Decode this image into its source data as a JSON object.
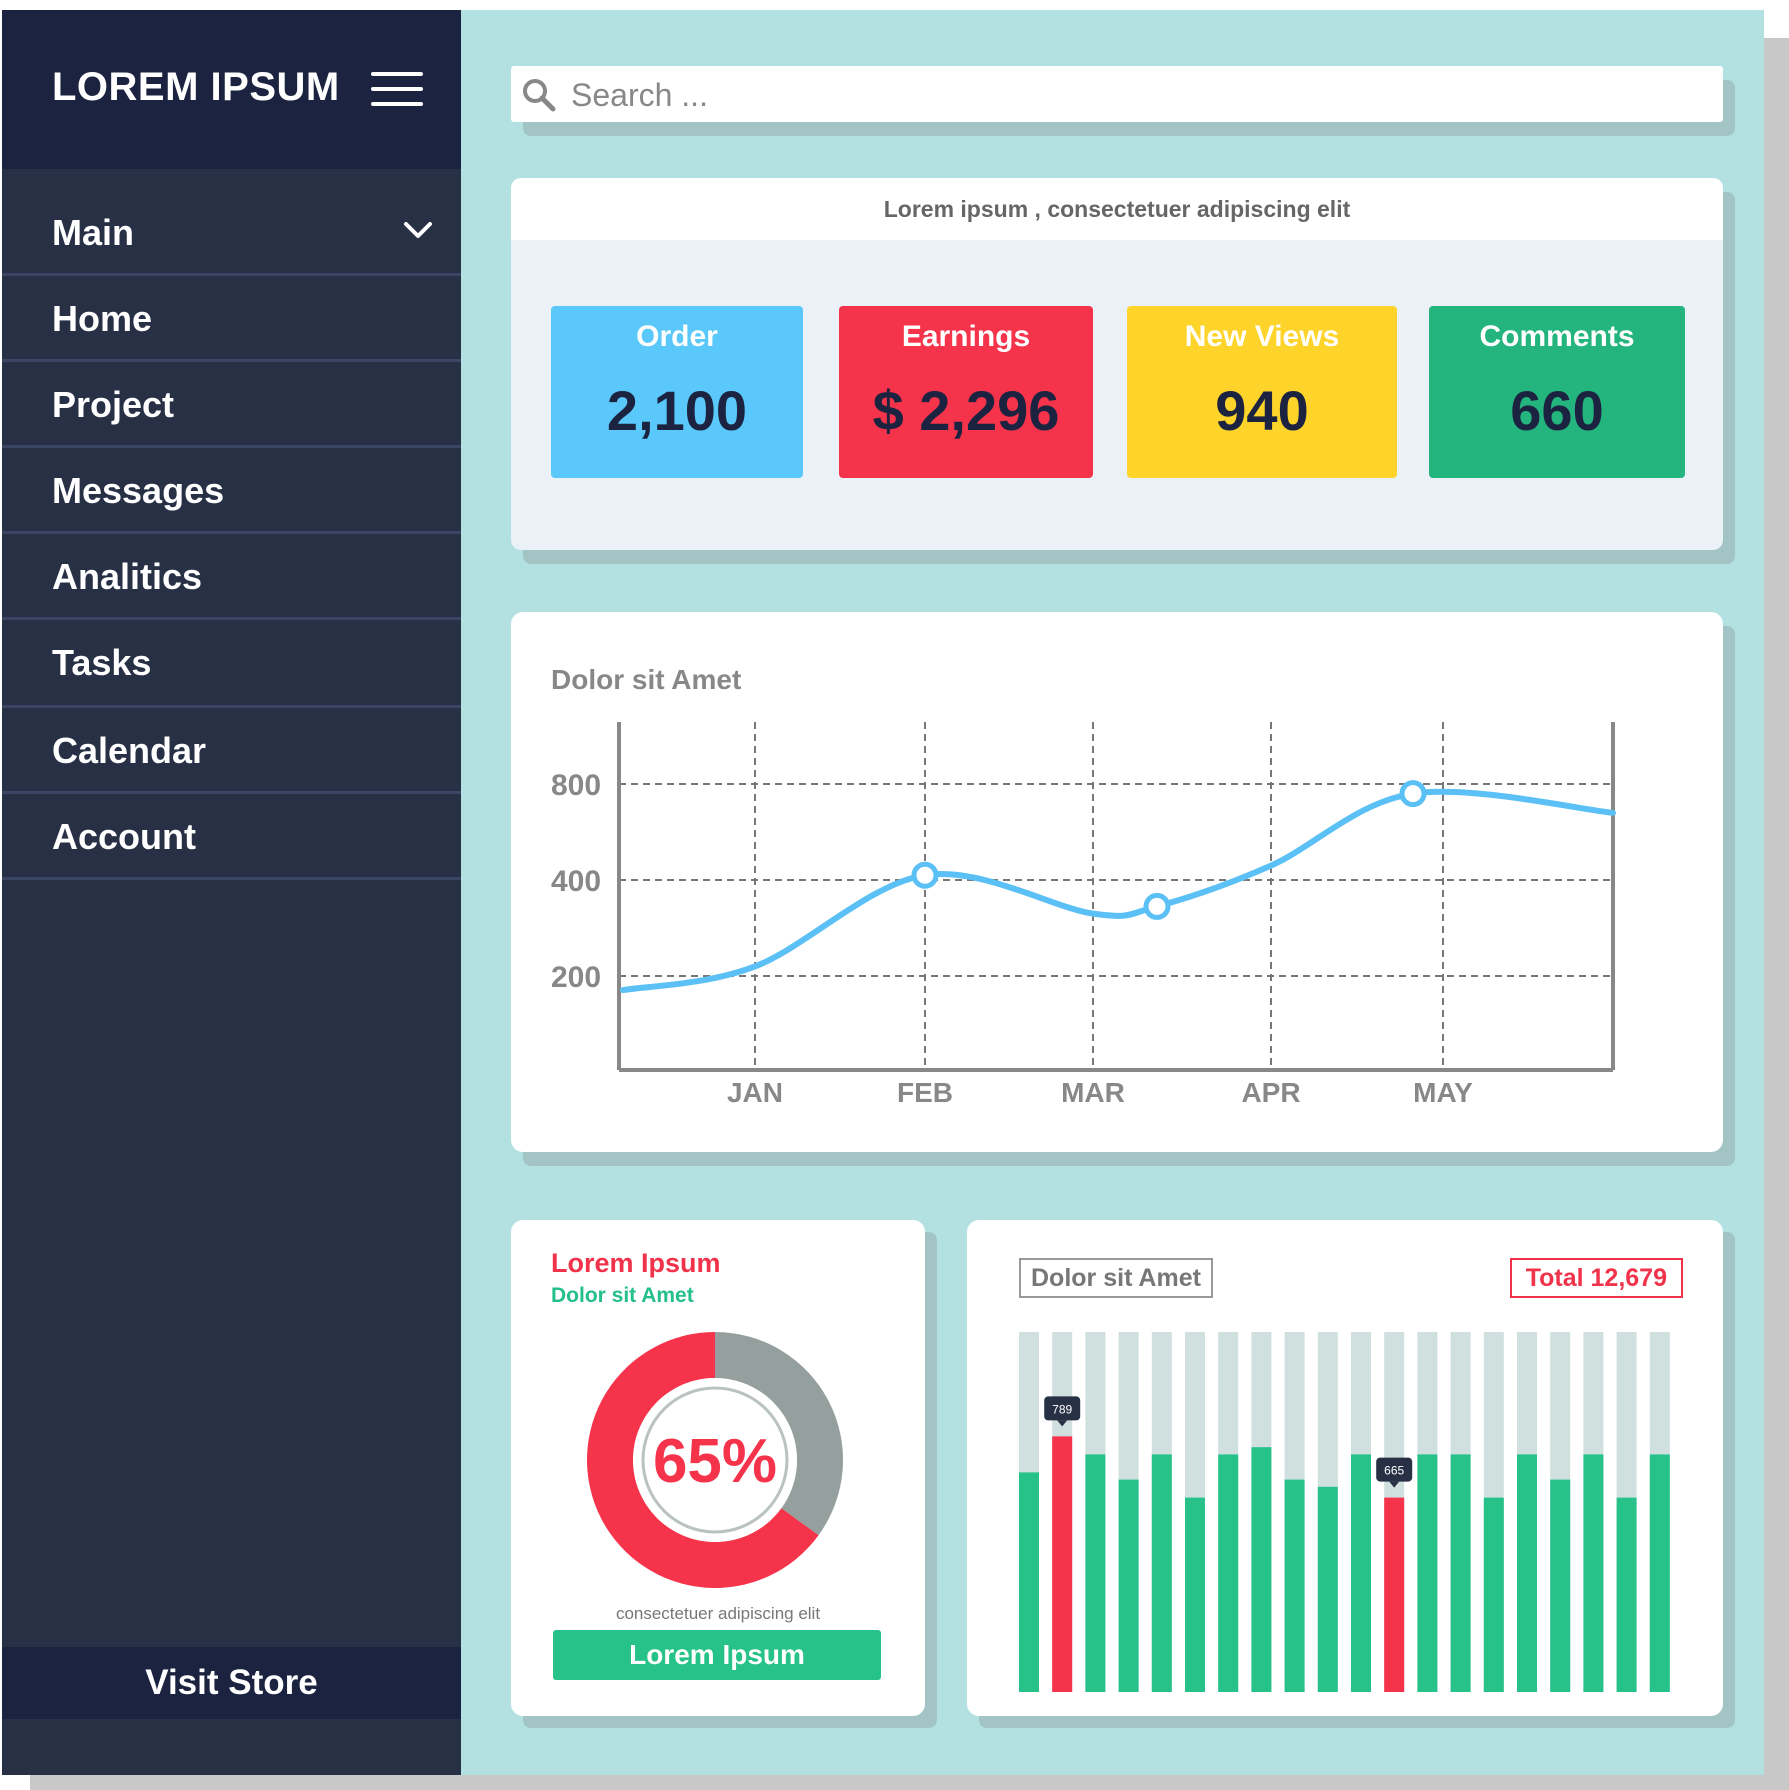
{
  "sidebar": {
    "brand": "LOREM IPSUM",
    "items": [
      {
        "label": "Main"
      },
      {
        "label": "Home"
      },
      {
        "label": "Project"
      },
      {
        "label": "Messages"
      },
      {
        "label": "Analitics"
      },
      {
        "label": "Tasks"
      },
      {
        "label": "Calendar"
      },
      {
        "label": "Account"
      }
    ],
    "footer_button": "Visit Store"
  },
  "search": {
    "placeholder": "Search ..."
  },
  "stats": {
    "heading": "Lorem ipsum , consectetuer adipiscing elit",
    "tiles": [
      {
        "label": "Order",
        "value": "2,100",
        "color": "#5ac8fa"
      },
      {
        "label": "Earnings",
        "value": "$ 2,296",
        "color": "#f5334b"
      },
      {
        "label": "New Views",
        "value": "940",
        "color": "#fed42a"
      },
      {
        "label": "Comments",
        "value": "660",
        "color": "#24b47e"
      }
    ]
  },
  "line_chart": {
    "title": "Dolor sit Amet"
  },
  "donut": {
    "title": "Lorem Ipsum",
    "subtitle": "Dolor sit Amet",
    "percent_label": "65%",
    "caption": "consectetuer adipiscing elit",
    "button": "Lorem Ipsum",
    "colors": {
      "primary": "#f5334b",
      "rest": "#95a09e"
    }
  },
  "bars": {
    "tag": "Dolor sit Amet",
    "total": "Total 12,679"
  },
  "chart_data": [
    {
      "type": "line",
      "title": "Dolor sit Amet",
      "categories": [
        "JAN",
        "FEB",
        "MAR",
        "APR",
        "MAY"
      ],
      "yticks": [
        200,
        400,
        800
      ],
      "points": [
        {
          "x": "start",
          "y": 170
        },
        {
          "x": "JAN",
          "y": 220
        },
        {
          "x": "FEB",
          "y": 420
        },
        {
          "x": "MAR",
          "y": 330
        },
        {
          "x": "MAR-APR",
          "y": 345
        },
        {
          "x": "APR",
          "y": 460
        },
        {
          "x": "MAY",
          "y": 760
        },
        {
          "x": "end",
          "y": 680
        }
      ],
      "marked_points": [
        "FEB",
        "MAR-APR",
        "MAY"
      ],
      "color": "#5bc0f5",
      "grid": true
    },
    {
      "type": "pie",
      "slices": [
        {
          "label": "65%",
          "value": 65,
          "color": "#f5334b"
        },
        {
          "value": 35,
          "color": "#95a09e"
        }
      ]
    },
    {
      "type": "bar",
      "series": [
        {
          "values": [
            0.61,
            0.71,
            0.66,
            0.59,
            0.66,
            0.54,
            0.66,
            0.68,
            0.59,
            0.57,
            0.66,
            0.54,
            0.66,
            0.66,
            0.54,
            0.66,
            0.59,
            0.66,
            0.54,
            0.66
          ]
        }
      ],
      "highlighted": [
        {
          "index": 1,
          "label": "789"
        },
        {
          "index": 11,
          "label": "665"
        }
      ],
      "colors": {
        "bar": "#26c28a",
        "highlight": "#f5334b",
        "track": "#cfe0df"
      },
      "ylim": [
        0,
        1
      ]
    }
  ]
}
